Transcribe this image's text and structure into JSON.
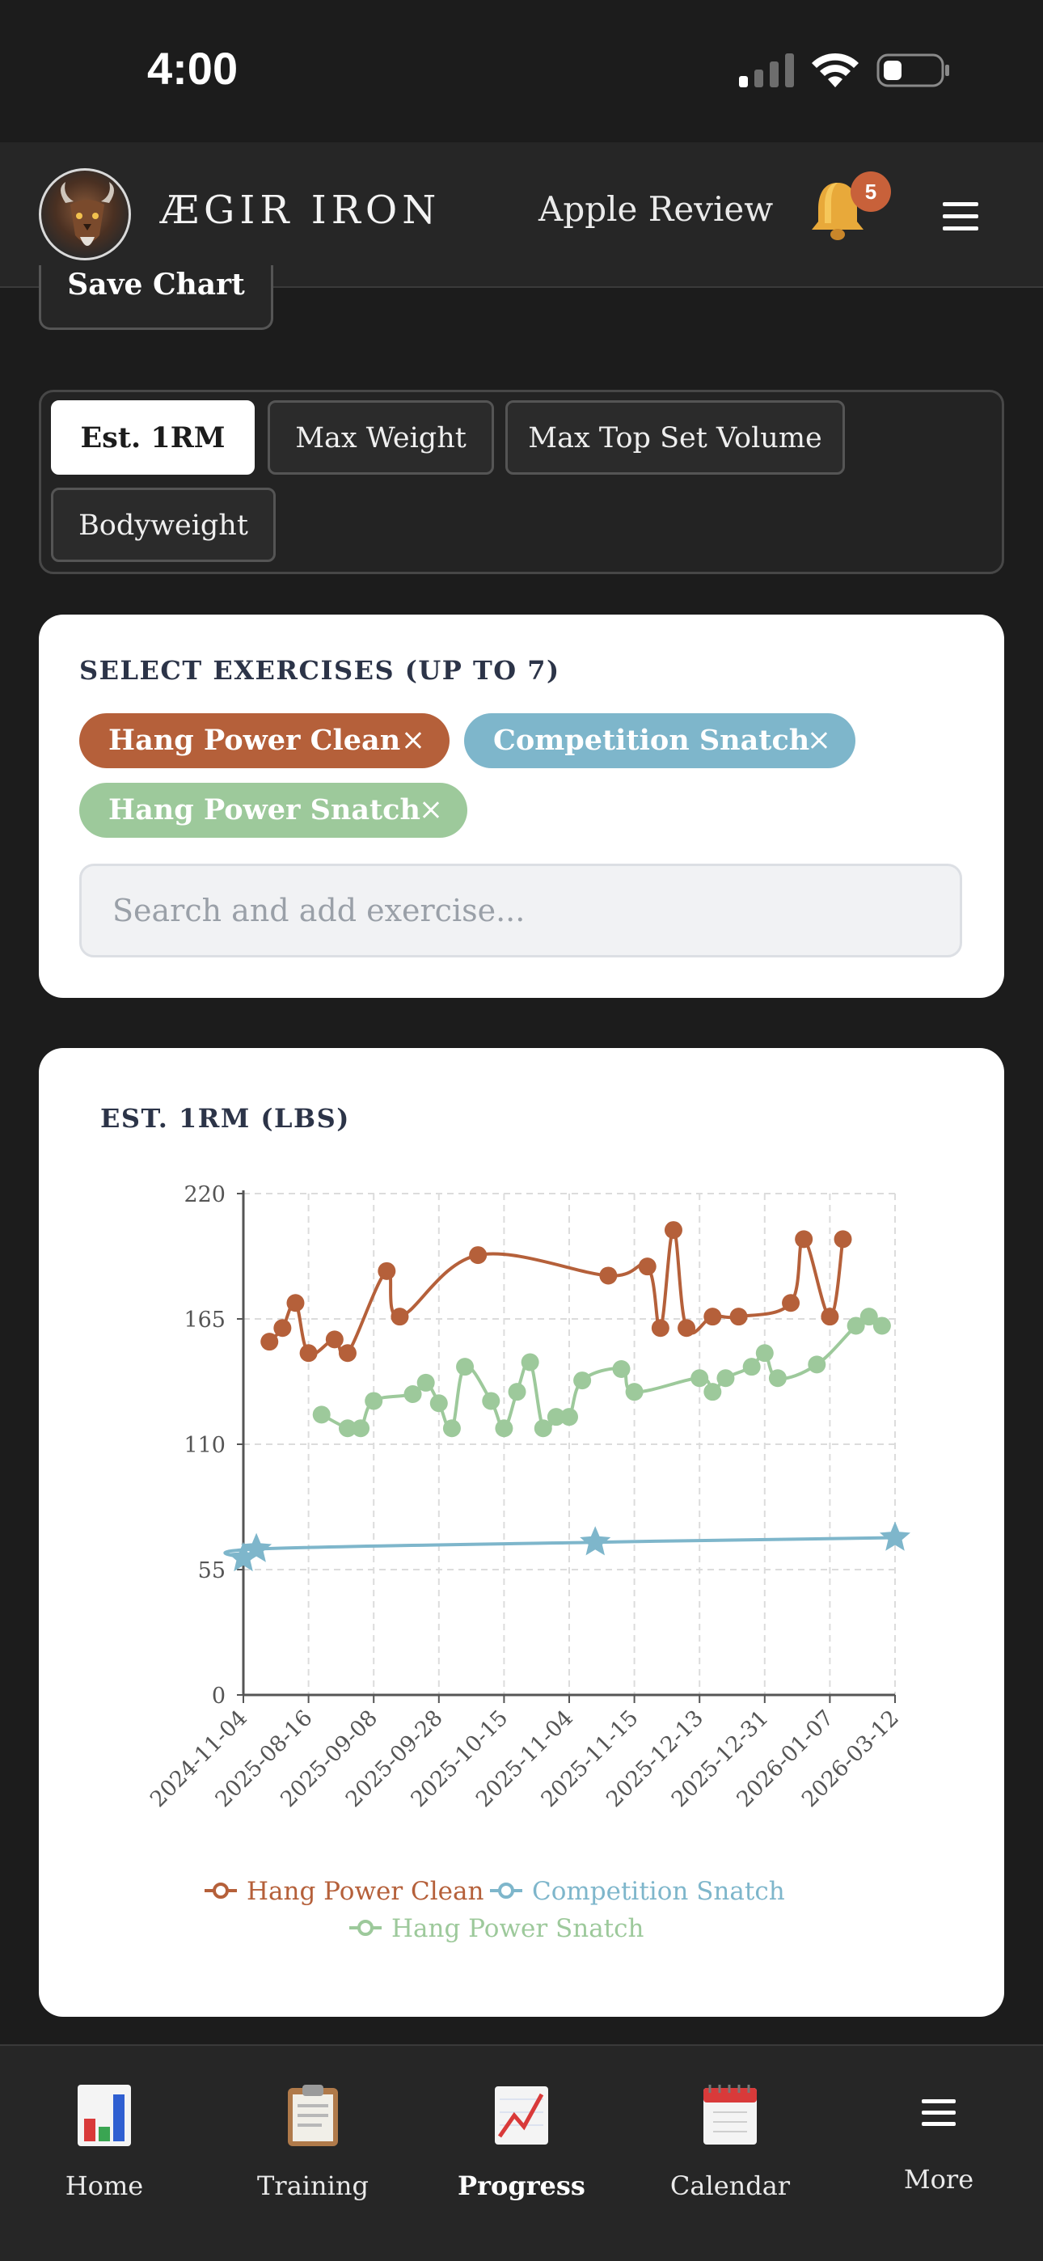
{
  "status_bar": {
    "time": "4:00"
  },
  "header": {
    "brand": "ÆGIR IRON",
    "user_name": "Apple Review",
    "notification_count": "5"
  },
  "save_chart_label": "Save Chart",
  "metric_tabs": [
    {
      "label": "Est. 1RM",
      "active": true
    },
    {
      "label": "Max Weight",
      "active": false
    },
    {
      "label": "Max Top Set Volume",
      "active": false
    },
    {
      "label": "Bodyweight",
      "active": false
    }
  ],
  "exercises": {
    "title": "SELECT EXERCISES (UP TO 7)",
    "chips": [
      {
        "label": "Hang Power Clean",
        "color": "#b5603a"
      },
      {
        "label": "Competition Snatch",
        "color": "#7eb6cb"
      },
      {
        "label": "Hang Power Snatch",
        "color": "#9dc99b"
      }
    ],
    "remove_symbol": "×",
    "search_placeholder": "Search and add exercise..."
  },
  "chart_data": {
    "type": "line",
    "title": "EST. 1RM (LBS)",
    "xlabel": "",
    "ylabel": "",
    "ylim": [
      0,
      220
    ],
    "yticks": [
      0,
      55,
      110,
      165,
      220
    ],
    "x_tick_labels": [
      "2024-11-04",
      "2025-08-16",
      "2025-09-08",
      "2025-09-28",
      "2025-10-15",
      "2025-11-04",
      "2025-11-15",
      "2025-12-13",
      "2025-12-31",
      "2026-01-07",
      "2026-03-12"
    ],
    "grid": true,
    "legend_position": "bottom",
    "series": [
      {
        "name": "Hang Power Clean",
        "color": "#b5603a",
        "marker": "circle",
        "points": [
          [
            0.4,
            155
          ],
          [
            0.6,
            161
          ],
          [
            0.8,
            172
          ],
          [
            1.0,
            150
          ],
          [
            1.4,
            156
          ],
          [
            1.6,
            150
          ],
          [
            2.2,
            186
          ],
          [
            2.4,
            166
          ],
          [
            3.6,
            193
          ],
          [
            5.6,
            184
          ],
          [
            6.2,
            188
          ],
          [
            6.4,
            161
          ],
          [
            6.6,
            204
          ],
          [
            6.8,
            161
          ],
          [
            7.2,
            166
          ],
          [
            7.6,
            166
          ],
          [
            8.4,
            172
          ],
          [
            8.6,
            200
          ],
          [
            9.0,
            166
          ],
          [
            9.2,
            200
          ]
        ]
      },
      {
        "name": "Competition Snatch",
        "color": "#7eb6cb",
        "marker": "star",
        "points": [
          [
            0.0,
            60
          ],
          [
            0.2,
            64
          ],
          [
            5.4,
            67
          ],
          [
            10.0,
            69
          ]
        ]
      },
      {
        "name": "Hang Power Snatch",
        "color": "#9dc99b",
        "marker": "circle",
        "points": [
          [
            1.2,
            123
          ],
          [
            1.6,
            117
          ],
          [
            1.8,
            117
          ],
          [
            2.0,
            129
          ],
          [
            2.6,
            132
          ],
          [
            2.8,
            137
          ],
          [
            3.0,
            128
          ],
          [
            3.2,
            117
          ],
          [
            3.4,
            144
          ],
          [
            3.8,
            129
          ],
          [
            4.0,
            117
          ],
          [
            4.2,
            133
          ],
          [
            4.4,
            146
          ],
          [
            4.6,
            117
          ],
          [
            4.8,
            122
          ],
          [
            5.0,
            122
          ],
          [
            5.2,
            138
          ],
          [
            5.8,
            143
          ],
          [
            6.0,
            133
          ],
          [
            7.0,
            139
          ],
          [
            7.2,
            133
          ],
          [
            7.4,
            139
          ],
          [
            7.8,
            144
          ],
          [
            8.0,
            150
          ],
          [
            8.2,
            139
          ],
          [
            8.8,
            145
          ],
          [
            9.4,
            162
          ],
          [
            9.6,
            166
          ],
          [
            9.8,
            162
          ]
        ]
      }
    ]
  },
  "bottom_nav": [
    {
      "label": "Home",
      "icon": "bar-chart-icon",
      "active": false
    },
    {
      "label": "Training",
      "icon": "clipboard-icon",
      "active": false
    },
    {
      "label": "Progress",
      "icon": "trend-chart-icon",
      "active": true
    },
    {
      "label": "Calendar",
      "icon": "calendar-icon",
      "active": false
    },
    {
      "label": "More",
      "icon": "menu-icon",
      "active": false
    }
  ]
}
